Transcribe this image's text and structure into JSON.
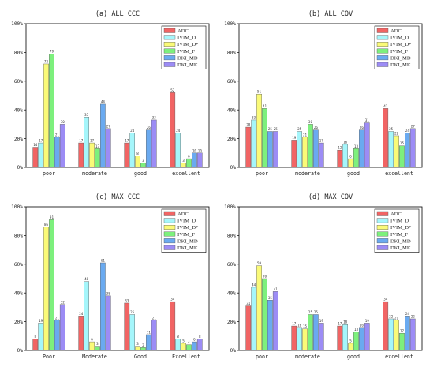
{
  "colors": {
    "ADC": "#f16464",
    "IVIM_D": "#a5f6fb",
    "IVIM_D*": "#fafa78",
    "IVIM_F": "#7df07d",
    "DKI_MD": "#6aaaf0",
    "DKI_MK": "#9c8cf5"
  },
  "chart_data": [
    {
      "type": "bar",
      "title": "(a) ALL_CCC",
      "categories": [
        "poor",
        "moderate",
        "good",
        "excellent"
      ],
      "yticks": [
        "0%",
        "20%",
        "40%",
        "60%",
        "80%",
        "100%"
      ],
      "ylim": [
        0,
        100
      ],
      "legend": "top-right",
      "series": [
        {
          "name": "ADC",
          "values": [
            14,
            17,
            17,
            52
          ]
        },
        {
          "name": "IVIM_D",
          "values": [
            17,
            35,
            24,
            24
          ]
        },
        {
          "name": "IVIM_D*",
          "values": [
            72,
            17,
            8,
            3
          ]
        },
        {
          "name": "IVIM_F",
          "values": [
            79,
            13,
            3,
            6
          ]
        },
        {
          "name": "DKI_MD",
          "values": [
            21,
            44,
            26,
            10
          ]
        },
        {
          "name": "DKI_MK",
          "values": [
            30,
            27,
            33,
            10
          ]
        }
      ]
    },
    {
      "type": "bar",
      "title": "(b) ALL_COV",
      "categories": [
        "poor",
        "moderate",
        "good",
        "excellent"
      ],
      "yticks": [
        "0%",
        "20%",
        "40%",
        "60%",
        "80%",
        "100%"
      ],
      "ylim": [
        0,
        100
      ],
      "legend": "top-right",
      "series": [
        {
          "name": "ADC",
          "values": [
            28,
            19,
            12,
            41
          ]
        },
        {
          "name": "IVIM_D",
          "values": [
            33,
            25,
            16,
            25
          ]
        },
        {
          "name": "IVIM_D*",
          "values": [
            51,
            21,
            6,
            22
          ]
        },
        {
          "name": "IVIM_F",
          "values": [
            41,
            30,
            13,
            15
          ]
        },
        {
          "name": "DKI_MD",
          "values": [
            25,
            26,
            26,
            24
          ]
        },
        {
          "name": "DKI_MK",
          "values": [
            25,
            17,
            31,
            27
          ]
        }
      ]
    },
    {
      "type": "bar",
      "title": "(c) MAX_CCC",
      "categories": [
        "Poor",
        "Moderate",
        "Good",
        "Excellent"
      ],
      "yticks": [
        "0%",
        "20%",
        "40%",
        "60%",
        "80%",
        "100%"
      ],
      "ylim": [
        0,
        100
      ],
      "legend": "top-right",
      "series": [
        {
          "name": "ADC",
          "values": [
            8,
            24,
            33,
            34
          ]
        },
        {
          "name": "IVIM_D",
          "values": [
            19,
            48,
            25,
            8
          ]
        },
        {
          "name": "IVIM_D*",
          "values": [
            86,
            6,
            3,
            5
          ]
        },
        {
          "name": "IVIM_F",
          "values": [
            91,
            3,
            2,
            4
          ]
        },
        {
          "name": "DKI_MD",
          "values": [
            21,
            61,
            11,
            6
          ]
        },
        {
          "name": "DKI_MK",
          "values": [
            32,
            38,
            21,
            8
          ]
        }
      ]
    },
    {
      "type": "bar",
      "title": "(d) MAX_COV",
      "categories": [
        "poor",
        "moderate",
        "good",
        "excellent"
      ],
      "yticks": [
        "0%",
        "20%",
        "40%",
        "60%",
        "80%",
        "100%"
      ],
      "ylim": [
        0,
        100
      ],
      "legend": "top-right",
      "series": [
        {
          "name": "ADC",
          "values": [
            31,
            17,
            17,
            34
          ]
        },
        {
          "name": "IVIM_D",
          "values": [
            44,
            16,
            18,
            22
          ]
        },
        {
          "name": "IVIM_D*",
          "values": [
            59,
            15,
            5,
            21
          ]
        },
        {
          "name": "IVIM_F",
          "values": [
            50,
            25,
            13,
            12
          ]
        },
        {
          "name": "DKI_MD",
          "values": [
            35,
            25,
            16,
            24
          ]
        },
        {
          "name": "DKI_MK",
          "values": [
            41,
            19,
            19,
            22
          ]
        }
      ]
    }
  ]
}
